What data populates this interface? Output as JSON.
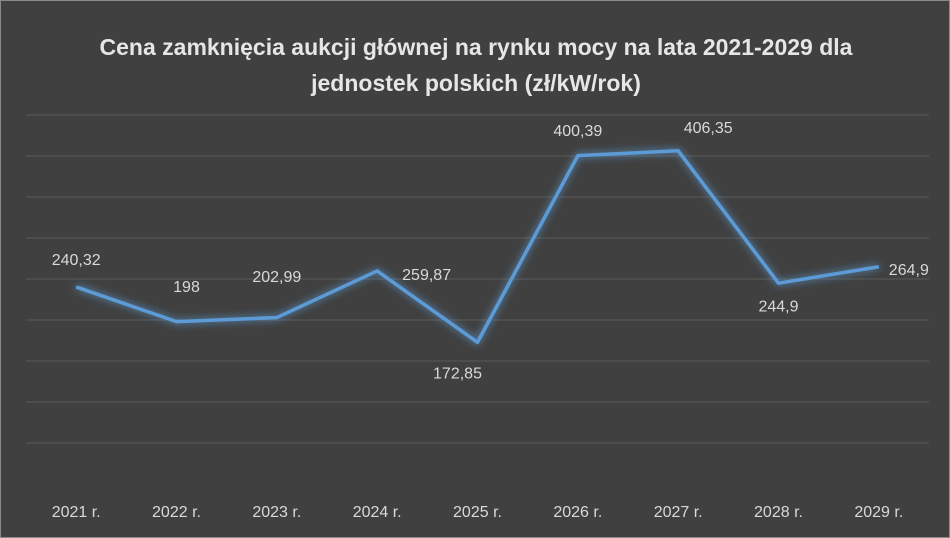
{
  "chart_data": {
    "type": "line",
    "title": "Cena zamknięcia aukcji głównej na rynku mocy na lata 2021-2029 dla jednostek polskich (zł/kW/rok)",
    "categories": [
      "2021 r.",
      "2022 r.",
      "2023 r.",
      "2024 r.",
      "2025 r.",
      "2026 r.",
      "2027 r.",
      "2028 r.",
      "2029 r."
    ],
    "values": [
      240.32,
      198,
      202.99,
      259.87,
      172.85,
      400.39,
      406.35,
      244.9,
      264.9
    ],
    "value_labels": [
      "240,32",
      "198",
      "202,99",
      "259,87",
      "172,85",
      "400,39",
      "406,35",
      "244,9",
      "264,9"
    ],
    "color": "#5b9bd5",
    "ylim": [
      0,
      450
    ],
    "yticks": [
      50,
      100,
      150,
      200,
      250,
      300,
      350,
      400,
      450
    ],
    "grid": true
  }
}
